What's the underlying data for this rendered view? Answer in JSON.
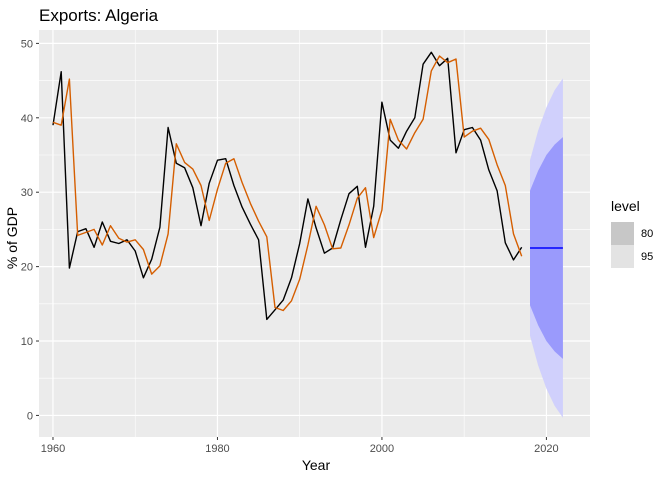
{
  "chart_data": {
    "type": "line",
    "title": "Exports: Algeria",
    "xlabel": "Year",
    "ylabel": "% of GDP",
    "xlim": [
      1958.3,
      2025.3
    ],
    "ylim": [
      -2.9,
      51.8
    ],
    "x_ticks": [
      1960,
      1980,
      2000,
      2020
    ],
    "y_ticks": [
      0,
      10,
      20,
      30,
      40,
      50
    ],
    "grid": true,
    "legend": {
      "title": "level",
      "placement": "right",
      "items": [
        {
          "label": "80",
          "color": "#c7c7c7"
        },
        {
          "label": "95",
          "color": "#e3e3e3"
        }
      ]
    },
    "series": [
      {
        "color": "#000000",
        "x": [
          1960,
          1961,
          1962,
          1963,
          1964,
          1965,
          1966,
          1967,
          1968,
          1969,
          1970,
          1971,
          1972,
          1973,
          1974,
          1975,
          1976,
          1977,
          1978,
          1979,
          1980,
          1981,
          1982,
          1983,
          1984,
          1985,
          1986,
          1987,
          1988,
          1989,
          1990,
          1991,
          1992,
          1993,
          1994,
          1995,
          1996,
          1997,
          1998,
          1999,
          2000,
          2001,
          2002,
          2003,
          2004,
          2005,
          2006,
          2007,
          2008,
          2009,
          2010,
          2011,
          2012,
          2013,
          2014,
          2015,
          2016,
          2017
        ],
        "y": [
          39.0,
          46.2,
          19.8,
          24.7,
          25.1,
          22.6,
          26.0,
          23.4,
          23.1,
          23.6,
          22.1,
          18.5,
          21.0,
          25.3,
          38.7,
          33.9,
          33.3,
          30.6,
          25.5,
          31.2,
          34.3,
          34.5,
          30.9,
          28.0,
          25.7,
          23.6,
          12.9,
          14.2,
          15.5,
          18.5,
          23.1,
          29.1,
          25.2,
          21.8,
          22.5,
          26.3,
          29.8,
          30.8,
          22.6,
          28.1,
          42.1,
          37.0,
          35.9,
          38.2,
          40.0,
          47.2,
          48.8,
          47.0,
          48.0,
          35.3,
          38.4,
          38.7,
          37.0,
          33.0,
          30.2,
          23.2,
          20.9,
          22.6
        ]
      },
      {
        "color": "#d55e00",
        "x": [
          1960,
          1961,
          1962,
          1963,
          1964,
          1965,
          1966,
          1967,
          1968,
          1969,
          1970,
          1971,
          1972,
          1973,
          1974,
          1975,
          1976,
          1977,
          1978,
          1979,
          1980,
          1981,
          1982,
          1983,
          1984,
          1985,
          1986,
          1987,
          1988,
          1989,
          1990,
          1991,
          1992,
          1993,
          1994,
          1995,
          1996,
          1997,
          1998,
          1999,
          2000,
          2001,
          2002,
          2003,
          2004,
          2005,
          2006,
          2007,
          2008,
          2009,
          2010,
          2011,
          2012,
          2013,
          2014,
          2015,
          2016,
          2017
        ],
        "y": [
          39.4,
          39.0,
          45.2,
          24.2,
          24.6,
          25.0,
          22.9,
          25.5,
          23.8,
          23.3,
          23.6,
          22.3,
          19.0,
          20.1,
          24.4,
          36.5,
          34.0,
          33.1,
          30.9,
          26.2,
          30.4,
          33.9,
          34.5,
          31.3,
          28.5,
          26.1,
          24.0,
          14.5,
          14.1,
          15.4,
          18.3,
          22.9,
          28.1,
          25.6,
          22.4,
          22.5,
          25.6,
          29.2,
          30.6,
          23.9,
          27.6,
          39.8,
          37.0,
          35.8,
          38.0,
          39.8,
          46.3,
          48.3,
          47.4,
          47.9,
          37.4,
          38.2,
          38.6,
          37.1,
          33.7,
          30.9,
          24.4,
          21.4
        ]
      },
      {
        "color": "#0000ff",
        "x": [
          2018,
          2019,
          2020,
          2021,
          2022
        ],
        "y": [
          22.5,
          22.5,
          22.5,
          22.5,
          22.5
        ]
      }
    ],
    "forecast_intervals": [
      {
        "level": "95",
        "color": "#d0d0fc",
        "x": [
          2018,
          2019,
          2020,
          2021,
          2022
        ],
        "lower": [
          10.7,
          6.7,
          3.6,
          1.3,
          -0.3
        ],
        "upper": [
          34.3,
          38.3,
          41.4,
          43.7,
          45.3
        ]
      },
      {
        "level": "80",
        "color": "#9a9afc",
        "x": [
          2018,
          2019,
          2020,
          2021,
          2022
        ],
        "lower": [
          14.8,
          12.1,
          10.0,
          8.6,
          7.6
        ],
        "upper": [
          30.2,
          32.9,
          35.0,
          36.4,
          37.4
        ]
      }
    ]
  }
}
